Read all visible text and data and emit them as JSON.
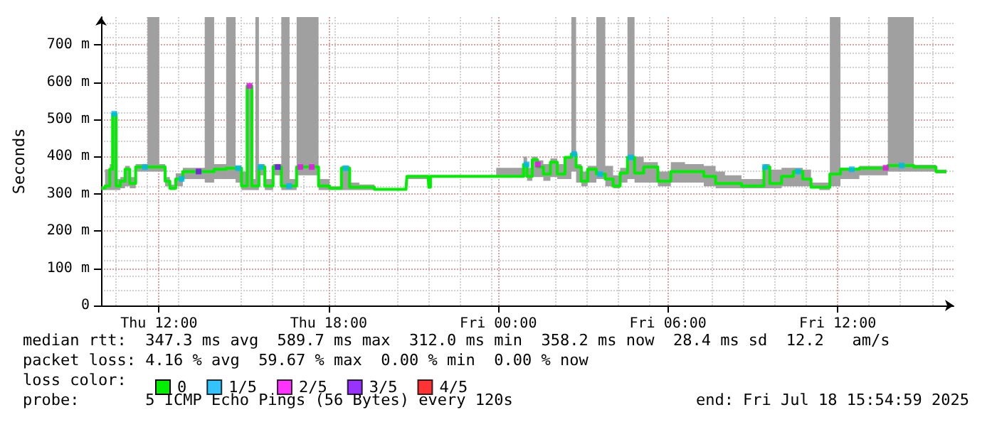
{
  "chart_data": {
    "type": "step",
    "ylabel": "Seconds",
    "xlim": [
      "2025-07-17T09:57",
      "2025-07-18T16:06"
    ],
    "xticks": [
      {
        "value": "2025-07-17T12:00",
        "label": "Thu 12:00"
      },
      {
        "value": "2025-07-17T18:00",
        "label": "Thu 18:00"
      },
      {
        "value": "2025-07-18T00:00",
        "label": "Fri 00:00"
      },
      {
        "value": "2025-07-18T06:00",
        "label": "Fri 06:00"
      },
      {
        "value": "2025-07-18T12:00",
        "label": "Fri 12:00"
      }
    ],
    "ylim": [
      0,
      775
    ],
    "yticks": [
      0,
      {
        "value": 100,
        "label": "100 m"
      },
      {
        "value": 200,
        "label": "200 m"
      },
      {
        "value": 300,
        "label": "300 m"
      },
      {
        "value": 400,
        "label": "400 m"
      },
      {
        "value": 500,
        "label": "500 m"
      },
      {
        "value": 600,
        "label": "600 m"
      },
      {
        "value": 700,
        "label": "700 m"
      }
    ],
    "grid": true,
    "marker": "none",
    "legend": "bottom left",
    "legend_title": "loss color:",
    "annotations": [
      "median rtt:  347.3 ms avg  589.7 ms max  312.0 ms min  358.2 ms now  28.4 ms sd  12.2   am/s",
      "packet loss: 4.16 % avg  59.67 % max  0.00 % min  0.00 % now",
      "probe:       5 ICMP Echo Pings (56 Bytes) every 120s",
      "end: Fri Jul 18 15:54:59 2025"
    ],
    "series": [
      {
        "name": "0",
        "color": "#00ee00",
        "x": [
          "2025-07-17T09:58",
          "2025-07-17T10:13",
          "2025-07-17T10:18",
          "2025-07-17T10:25",
          "2025-07-17T10:33",
          "2025-07-17T10:43",
          "2025-07-17T10:53",
          "2025-07-17T11:03",
          "2025-07-17T11:18",
          "2025-07-17T11:53",
          "2025-07-17T12:08",
          "2025-07-17T12:18",
          "2025-07-17T12:28",
          "2025-07-17T12:43",
          "2025-07-17T12:58",
          "2025-07-17T13:28",
          "2025-07-17T13:46",
          "2025-07-17T14:08",
          "2025-07-17T14:37",
          "2025-07-17T14:48",
          "2025-07-17T15:02",
          "2025-07-17T15:12",
          "2025-07-17T15:22",
          "2025-07-17T15:27",
          "2025-07-17T15:37",
          "2025-07-17T15:52",
          "2025-07-17T16:12",
          "2025-07-17T16:27",
          "2025-07-17T16:47",
          "2025-07-17T16:57",
          "2025-07-17T17:12",
          "2025-07-17T17:30",
          "2025-07-17T17:47",
          "2025-07-17T18:17",
          "2025-07-17T18:37",
          "2025-07-17T18:52",
          "2025-07-17T19:18",
          "2025-07-17T19:56",
          "2025-07-17T20:44",
          "2025-07-17T20:48",
          "2025-07-17T21:31",
          "2025-07-17T21:34",
          "2025-07-17T21:38",
          "2025-07-17T23:00",
          "2025-07-18T00:51",
          "2025-07-18T00:56",
          "2025-07-18T01:06",
          "2025-07-18T01:18",
          "2025-07-18T01:28",
          "2025-07-18T01:43",
          "2025-07-18T01:58",
          "2025-07-18T02:12",
          "2025-07-18T02:31",
          "2025-07-18T02:39",
          "2025-07-18T02:51",
          "2025-07-18T03:01",
          "2025-07-18T03:18",
          "2025-07-18T03:38",
          "2025-07-18T03:56",
          "2025-07-18T04:11",
          "2025-07-18T04:26",
          "2025-07-18T04:42",
          "2025-07-18T04:56",
          "2025-07-18T05:21",
          "2025-07-18T05:56",
          "2025-07-18T06:16",
          "2025-07-18T06:56",
          "2025-07-18T07:36",
          "2025-07-18T07:46",
          "2025-07-18T08:16",
          "2025-07-18T08:56",
          "2025-07-18T09:21",
          "2025-07-18T09:26",
          "2025-07-18T09:46",
          "2025-07-18T10:16",
          "2025-07-18T10:36",
          "2025-07-18T10:56",
          "2025-07-18T11:11",
          "2025-07-18T11:31",
          "2025-07-18T11:56",
          "2025-07-18T12:16",
          "2025-07-18T13:16",
          "2025-07-18T14:17",
          "2025-07-18T15:06",
          "2025-07-18T15:51"
        ],
        "values": [
          315,
          321,
          366,
          515,
          321,
          334,
          366,
          328,
          372,
          372,
          372,
          334,
          315,
          340,
          360,
          360,
          360,
          366,
          369,
          369,
          321,
          590,
          321,
          321,
          372,
          321,
          372,
          321,
          321,
          372,
          372,
          372,
          321,
          315,
          369,
          318,
          318,
          312,
          312,
          347,
          347,
          318,
          347,
          347,
          347,
          379,
          347,
          392,
          372,
          353,
          385,
          353,
          398,
          407,
          372,
          334,
          366,
          353,
          340,
          321,
          356,
          398,
          356,
          372,
          334,
          360,
          360,
          347,
          328,
          328,
          321,
          321,
          372,
          328,
          347,
          360,
          340,
          318,
          318,
          353,
          366,
          369,
          376,
          372,
          360
        ],
        "lower": [
          310,
          310,
          310,
          310,
          310,
          315,
          320,
          315,
          360,
          360,
          360,
          320,
          310,
          320,
          340,
          340,
          330,
          340,
          340,
          330,
          310,
          310,
          310,
          310,
          350,
          310,
          350,
          310,
          310,
          350,
          350,
          350,
          310,
          310,
          310,
          310,
          310,
          310,
          310,
          340,
          340,
          315,
          345,
          345,
          345,
          345,
          335,
          345,
          345,
          335,
          345,
          340,
          340,
          360,
          330,
          320,
          330,
          340,
          320,
          315,
          330,
          340,
          330,
          330,
          320,
          330,
          330,
          320,
          315,
          315,
          315,
          315,
          315,
          315,
          320,
          320,
          320,
          315,
          310,
          320,
          340,
          350,
          360,
          360,
          355
        ],
        "upper": [
          320,
          366,
          380,
          515,
          340,
          345,
          375,
          345,
          380,
          775,
          380,
          345,
          325,
          355,
          370,
          370,
          775,
          380,
          775,
          375,
          360,
          590,
          340,
          775,
          380,
          340,
          380,
          775,
          340,
          775,
          775,
          775,
          340,
          320,
          375,
          330,
          325,
          315,
          315,
          350,
          350,
          350,
          350,
          350,
          370,
          400,
          370,
          400,
          390,
          380,
          395,
          380,
          400,
          775,
          380,
          360,
          375,
          775,
          375,
          350,
          370,
          775,
          400,
          385,
          360,
          385,
          380,
          375,
          360,
          350,
          340,
          340,
          380,
          365,
          370,
          370,
          365,
          330,
          330,
          775,
          370,
          375,
          775,
          378,
          365
        ]
      },
      {
        "name": "1/5",
        "type": "scatter",
        "marker": "square",
        "color": "#00b4ff",
        "x": [
          "2025-07-17T10:25",
          "2025-07-17T11:30",
          "2025-07-17T12:48",
          "2025-07-17T14:48",
          "2025-07-17T15:36",
          "2025-07-17T16:36",
          "2025-07-17T18:36",
          "2025-07-18T01:00",
          "2025-07-18T02:41",
          "2025-07-18T03:36",
          "2025-07-18T04:41",
          "2025-07-18T09:26",
          "2025-07-18T10:36",
          "2025-07-18T12:30",
          "2025-07-18T14:16"
        ],
        "values": [
          515,
          372,
          340,
          369,
          372,
          321,
          369,
          379,
          407,
          353,
          398,
          372,
          360,
          366,
          376
        ]
      },
      {
        "name": "2/5",
        "type": "scatter",
        "marker": "square",
        "color": "#ff00ff",
        "x": [
          "2025-07-17T15:12",
          "2025-07-17T17:00",
          "2025-07-17T17:24",
          "2025-07-18T01:24",
          "2025-07-18T13:42"
        ],
        "values": [
          590,
          372,
          372,
          379,
          370
        ]
      },
      {
        "name": "3/5",
        "type": "scatter",
        "marker": "square",
        "color": "#7e00ff",
        "x": [
          "2025-07-17T13:24",
          "2025-07-17T16:12"
        ],
        "values": [
          360,
          372
        ]
      },
      {
        "name": "4/5",
        "type": "scatter",
        "marker": "square",
        "color": "#ff0000"
      }
    ]
  }
}
